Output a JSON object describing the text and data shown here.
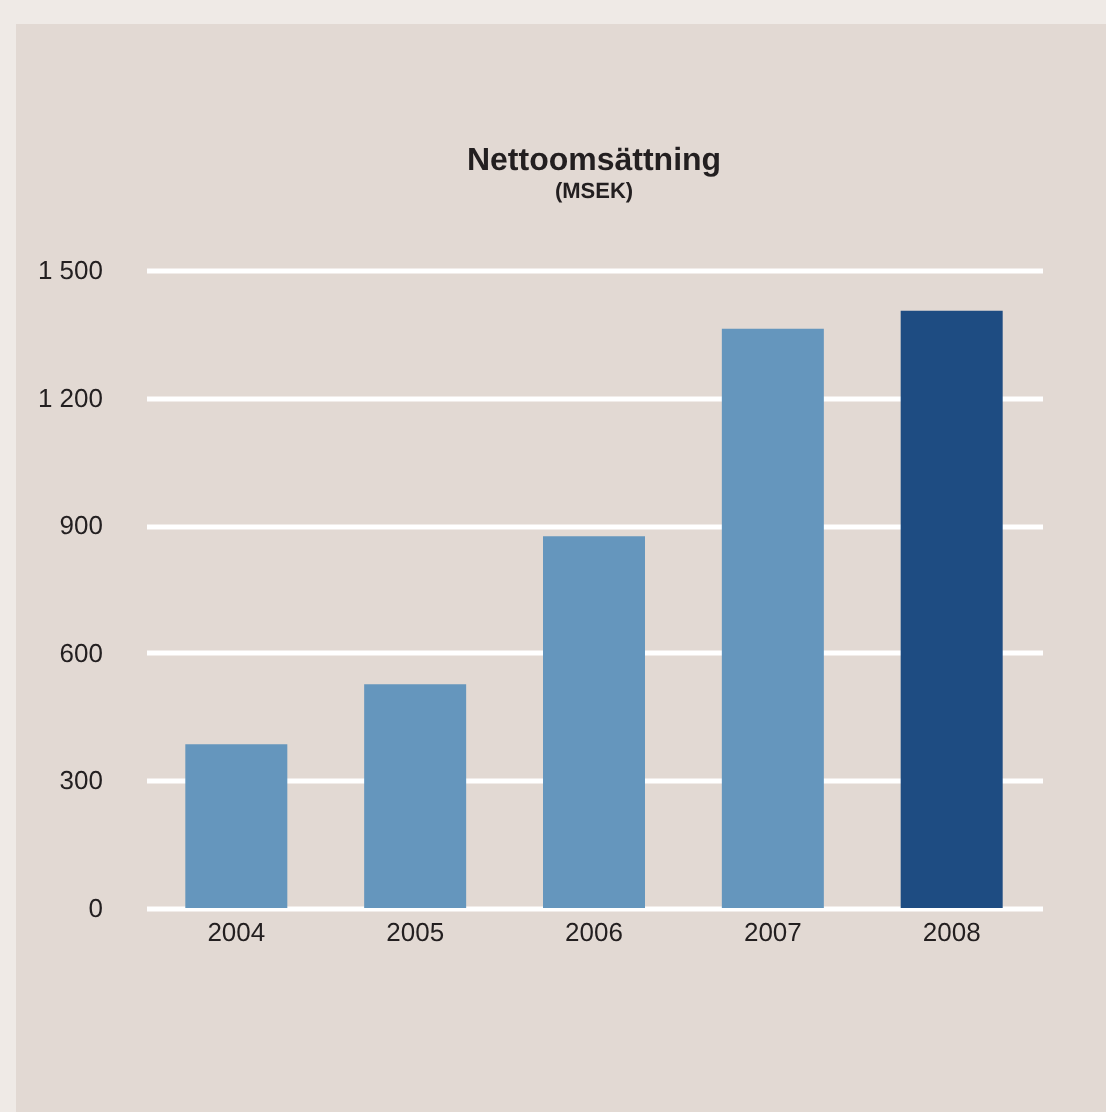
{
  "chart_data": {
    "type": "bar",
    "title": "Nettoomsättning",
    "subtitle": "(MSEK)",
    "categories": [
      "2004",
      "2005",
      "2006",
      "2007",
      "2008"
    ],
    "values": [
      385,
      526,
      874,
      1362,
      1404
    ],
    "colors": [
      "#6596bd",
      "#6596bd",
      "#6596bd",
      "#6596bd",
      "#1e4c82"
    ],
    "ylim": [
      0,
      1500
    ],
    "yticks": [
      0,
      300,
      600,
      900,
      {
        "value": 1200,
        "label": "1 200"
      },
      {
        "value": 1500,
        "label": "1 500"
      }
    ],
    "grid": "y"
  }
}
